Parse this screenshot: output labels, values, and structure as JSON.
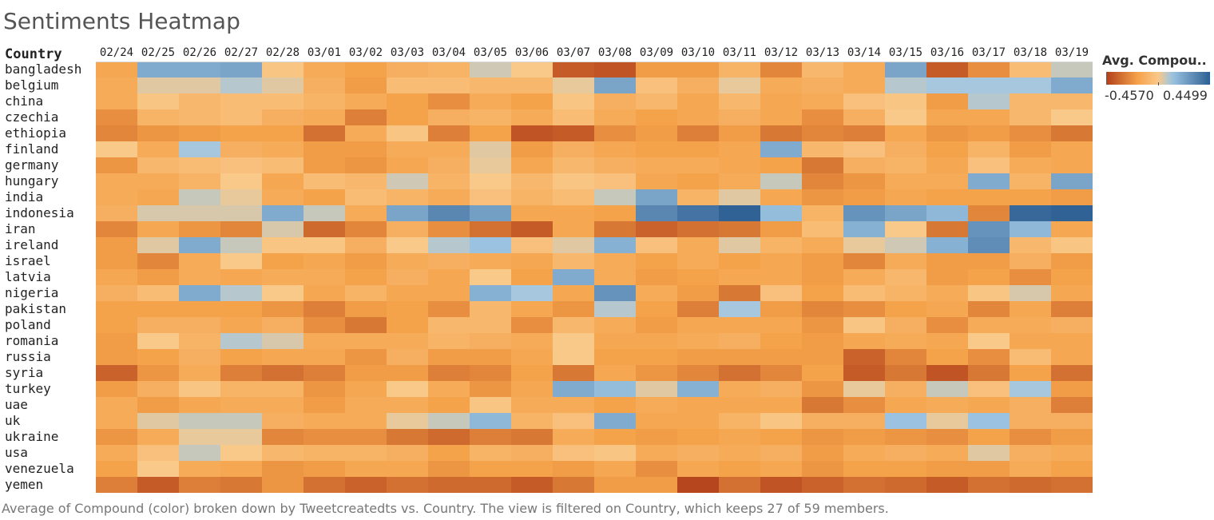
{
  "title": "Sentiments Heatmap",
  "row_header": "Country",
  "caption": "Average of Compound (color) broken down by Tweetcreatedts vs. Country. The view is filtered on Country, which keeps 27 of 59 members.",
  "legend": {
    "title": "Avg. Compou..",
    "min_label": "-0.4570",
    "max_label": "0.4499",
    "min": -0.457,
    "max": 0.4499,
    "colors": [
      "#b2401a",
      "#f5a24a",
      "#f9c98a",
      "#9fc7e4",
      "#2e5f93"
    ]
  },
  "chart_data": {
    "type": "heatmap",
    "title": "Sentiments Heatmap",
    "xlabel": "",
    "ylabel": "Country",
    "x": [
      "02/24",
      "02/25",
      "02/26",
      "02/27",
      "02/28",
      "03/01",
      "03/02",
      "03/03",
      "03/04",
      "03/05",
      "03/06",
      "03/07",
      "03/08",
      "03/09",
      "03/10",
      "03/11",
      "03/12",
      "03/13",
      "03/14",
      "03/15",
      "03/16",
      "03/17",
      "03/18",
      "03/19"
    ],
    "y": [
      "bangladesh",
      "belgium",
      "china",
      "czechia",
      "ethiopia",
      "finland",
      "germany",
      "hungary",
      "india",
      "indonesia",
      "iran",
      "ireland",
      "israel",
      "latvia",
      "nigeria",
      "pakistan",
      "poland",
      "romania",
      "russia",
      "syria",
      "turkey",
      "uae",
      "uk",
      "ukraine",
      "usa",
      "venezuela",
      "yemen"
    ],
    "values": [
      [
        -0.16,
        0.2,
        0.2,
        0.22,
        -0.02,
        -0.14,
        -0.18,
        -0.12,
        -0.1,
        0.05,
        0.0,
        -0.38,
        -0.4,
        -0.2,
        -0.2,
        -0.1,
        -0.26,
        -0.08,
        -0.14,
        0.22,
        -0.38,
        -0.24,
        -0.06,
        0.06
      ],
      [
        -0.14,
        0.03,
        0.03,
        0.08,
        0.03,
        -0.12,
        -0.2,
        -0.06,
        -0.06,
        -0.08,
        -0.08,
        0.02,
        0.22,
        -0.04,
        -0.12,
        0.02,
        -0.14,
        -0.12,
        -0.14,
        0.08,
        0.1,
        0.1,
        0.1,
        0.2
      ],
      [
        -0.14,
        -0.02,
        -0.08,
        -0.06,
        -0.06,
        -0.1,
        -0.14,
        -0.18,
        -0.24,
        -0.14,
        -0.18,
        -0.02,
        -0.12,
        -0.08,
        -0.16,
        -0.08,
        -0.16,
        -0.14,
        -0.04,
        -0.02,
        -0.2,
        0.08,
        -0.08,
        -0.08
      ],
      [
        -0.24,
        -0.1,
        -0.08,
        -0.06,
        -0.12,
        -0.14,
        -0.28,
        -0.18,
        -0.12,
        -0.1,
        -0.14,
        -0.06,
        -0.14,
        -0.18,
        -0.16,
        -0.12,
        -0.16,
        -0.24,
        -0.12,
        0.0,
        -0.16,
        -0.16,
        -0.08,
        0.0
      ],
      [
        -0.26,
        -0.22,
        -0.2,
        -0.18,
        -0.18,
        -0.32,
        -0.14,
        -0.02,
        -0.28,
        -0.18,
        -0.4,
        -0.38,
        -0.24,
        -0.2,
        -0.28,
        -0.2,
        -0.3,
        -0.26,
        -0.28,
        -0.16,
        -0.22,
        -0.2,
        -0.24,
        -0.3
      ],
      [
        0.0,
        -0.14,
        0.1,
        -0.12,
        -0.14,
        -0.2,
        -0.2,
        -0.14,
        -0.14,
        0.03,
        -0.2,
        -0.12,
        -0.16,
        -0.18,
        -0.18,
        -0.16,
        0.2,
        -0.08,
        -0.04,
        -0.12,
        -0.18,
        -0.1,
        -0.2,
        -0.16
      ],
      [
        -0.22,
        -0.08,
        -0.06,
        -0.04,
        -0.06,
        -0.2,
        -0.22,
        -0.16,
        -0.12,
        0.02,
        -0.16,
        -0.08,
        -0.12,
        -0.14,
        -0.14,
        -0.16,
        -0.18,
        -0.3,
        -0.12,
        -0.1,
        -0.16,
        -0.04,
        -0.14,
        -0.16
      ],
      [
        -0.14,
        -0.14,
        -0.1,
        0.0,
        -0.16,
        -0.06,
        -0.08,
        0.05,
        -0.1,
        0.0,
        -0.08,
        -0.02,
        -0.04,
        -0.16,
        -0.18,
        -0.14,
        0.06,
        -0.26,
        -0.22,
        -0.14,
        -0.14,
        0.2,
        -0.1,
        0.22
      ],
      [
        -0.14,
        -0.16,
        0.06,
        0.02,
        -0.14,
        -0.18,
        -0.06,
        -0.1,
        -0.14,
        -0.04,
        -0.1,
        -0.06,
        0.06,
        0.22,
        -0.1,
        0.03,
        -0.16,
        -0.22,
        -0.2,
        -0.16,
        -0.18,
        -0.18,
        -0.18,
        -0.2
      ],
      [
        -0.12,
        0.04,
        0.04,
        0.04,
        0.2,
        0.06,
        -0.14,
        0.22,
        0.32,
        0.24,
        -0.16,
        -0.16,
        -0.18,
        0.32,
        0.38,
        0.44,
        0.14,
        -0.1,
        0.28,
        0.22,
        0.16,
        -0.26,
        0.42,
        0.44
      ],
      [
        -0.26,
        -0.16,
        -0.22,
        -0.26,
        0.04,
        -0.34,
        -0.26,
        -0.12,
        -0.24,
        -0.32,
        -0.38,
        -0.16,
        -0.3,
        -0.36,
        -0.32,
        -0.3,
        -0.2,
        -0.06,
        0.18,
        0.0,
        -0.3,
        0.28,
        0.16,
        -0.16
      ],
      [
        -0.2,
        0.03,
        0.2,
        0.06,
        -0.02,
        -0.02,
        -0.12,
        0.0,
        0.08,
        0.12,
        -0.04,
        0.03,
        0.18,
        -0.04,
        -0.14,
        0.03,
        -0.1,
        -0.14,
        0.02,
        0.05,
        0.18,
        0.3,
        -0.08,
        -0.02
      ],
      [
        -0.2,
        -0.26,
        -0.14,
        0.0,
        -0.18,
        -0.16,
        -0.2,
        -0.14,
        -0.12,
        -0.14,
        -0.16,
        -0.08,
        -0.14,
        -0.18,
        -0.14,
        -0.18,
        -0.16,
        -0.2,
        -0.26,
        -0.14,
        -0.2,
        -0.2,
        -0.12,
        -0.2
      ],
      [
        -0.16,
        -0.2,
        -0.14,
        -0.16,
        -0.14,
        -0.14,
        -0.18,
        -0.12,
        -0.16,
        0.0,
        -0.18,
        0.2,
        -0.14,
        -0.2,
        -0.18,
        -0.16,
        -0.16,
        -0.2,
        -0.14,
        -0.08,
        -0.2,
        -0.18,
        -0.24,
        -0.18
      ],
      [
        -0.12,
        -0.06,
        0.2,
        0.08,
        0.0,
        -0.16,
        -0.1,
        -0.16,
        -0.16,
        0.18,
        0.1,
        -0.16,
        0.28,
        -0.14,
        -0.2,
        -0.3,
        -0.04,
        -0.18,
        -0.06,
        -0.1,
        -0.14,
        -0.02,
        0.04,
        -0.16
      ],
      [
        -0.18,
        -0.18,
        -0.18,
        -0.18,
        -0.22,
        -0.28,
        -0.2,
        -0.18,
        -0.24,
        -0.08,
        -0.16,
        -0.22,
        0.08,
        -0.18,
        -0.28,
        0.1,
        -0.2,
        -0.26,
        -0.24,
        -0.18,
        -0.16,
        -0.26,
        -0.16,
        -0.28
      ],
      [
        -0.18,
        -0.12,
        -0.12,
        -0.16,
        -0.12,
        -0.24,
        -0.3,
        -0.18,
        -0.08,
        -0.08,
        -0.24,
        -0.08,
        -0.14,
        -0.2,
        -0.16,
        -0.16,
        -0.16,
        -0.22,
        -0.02,
        -0.12,
        -0.24,
        -0.14,
        -0.14,
        -0.12
      ],
      [
        -0.2,
        0.0,
        -0.1,
        0.08,
        0.04,
        -0.14,
        -0.14,
        -0.14,
        -0.1,
        -0.12,
        -0.14,
        0.0,
        -0.16,
        -0.16,
        -0.14,
        -0.12,
        -0.18,
        -0.2,
        -0.16,
        -0.14,
        -0.16,
        0.0,
        -0.16,
        -0.16
      ],
      [
        -0.2,
        -0.18,
        -0.12,
        -0.18,
        -0.16,
        -0.16,
        -0.22,
        -0.12,
        -0.2,
        -0.2,
        -0.16,
        0.0,
        -0.18,
        -0.18,
        -0.2,
        -0.2,
        -0.2,
        -0.2,
        -0.36,
        -0.26,
        -0.18,
        -0.24,
        -0.06,
        -0.16
      ],
      [
        -0.36,
        -0.22,
        -0.14,
        -0.28,
        -0.32,
        -0.28,
        -0.2,
        -0.2,
        -0.28,
        -0.26,
        -0.18,
        -0.3,
        -0.16,
        -0.22,
        -0.26,
        -0.32,
        -0.26,
        -0.18,
        -0.38,
        -0.3,
        -0.4,
        -0.3,
        -0.18,
        -0.32
      ],
      [
        -0.2,
        -0.12,
        -0.02,
        -0.1,
        -0.1,
        -0.22,
        -0.16,
        0.0,
        -0.14,
        -0.22,
        -0.16,
        0.2,
        0.14,
        0.03,
        0.18,
        -0.14,
        -0.12,
        -0.22,
        0.02,
        -0.12,
        0.06,
        -0.04,
        0.1,
        -0.2
      ],
      [
        -0.14,
        -0.2,
        -0.16,
        -0.14,
        -0.14,
        -0.2,
        -0.14,
        -0.14,
        -0.18,
        -0.02,
        -0.14,
        -0.14,
        -0.18,
        -0.14,
        -0.16,
        -0.16,
        -0.16,
        -0.3,
        -0.24,
        -0.16,
        -0.14,
        -0.16,
        -0.12,
        -0.28
      ],
      [
        -0.14,
        0.03,
        0.06,
        0.06,
        -0.12,
        -0.14,
        -0.14,
        0.02,
        0.06,
        0.16,
        -0.1,
        -0.04,
        0.2,
        -0.16,
        -0.16,
        -0.1,
        -0.02,
        -0.12,
        -0.12,
        0.12,
        0.02,
        0.12,
        -0.12,
        -0.12
      ],
      [
        -0.22,
        -0.14,
        0.02,
        0.02,
        -0.26,
        -0.24,
        -0.24,
        -0.3,
        -0.34,
        -0.28,
        -0.3,
        -0.14,
        -0.18,
        -0.2,
        -0.18,
        -0.16,
        -0.18,
        -0.22,
        -0.2,
        -0.22,
        -0.24,
        -0.18,
        -0.24,
        -0.2
      ],
      [
        -0.14,
        -0.04,
        0.06,
        0.0,
        -0.08,
        -0.1,
        -0.1,
        -0.12,
        -0.18,
        -0.1,
        -0.12,
        -0.04,
        -0.02,
        -0.14,
        -0.12,
        -0.14,
        -0.12,
        -0.2,
        -0.14,
        -0.12,
        -0.14,
        0.03,
        -0.12,
        -0.14
      ],
      [
        -0.18,
        0.0,
        -0.14,
        -0.16,
        -0.22,
        -0.2,
        -0.16,
        -0.16,
        -0.22,
        -0.18,
        -0.18,
        -0.2,
        -0.16,
        -0.24,
        -0.16,
        -0.18,
        -0.16,
        -0.22,
        -0.18,
        -0.18,
        -0.2,
        -0.2,
        -0.14,
        -0.18
      ],
      [
        -0.28,
        -0.38,
        -0.28,
        -0.3,
        -0.22,
        -0.32,
        -0.36,
        -0.32,
        -0.34,
        -0.34,
        -0.38,
        -0.3,
        -0.2,
        -0.2,
        -0.44,
        -0.32,
        -0.4,
        -0.36,
        -0.32,
        -0.34,
        -0.38,
        -0.32,
        -0.34,
        -0.32
      ]
    ],
    "color_range": [
      -0.457,
      0.4499
    ]
  }
}
